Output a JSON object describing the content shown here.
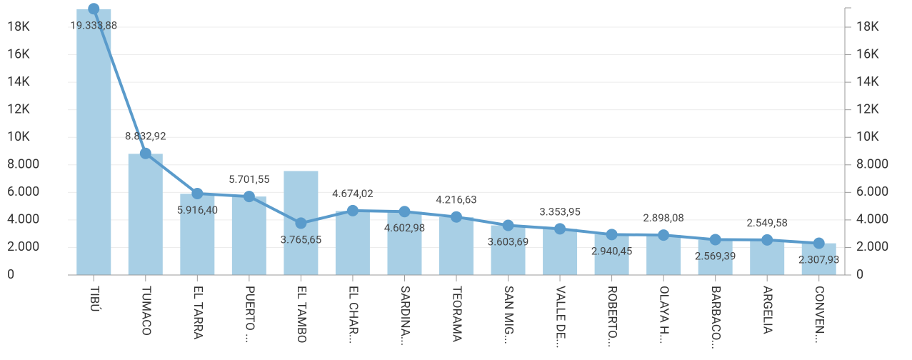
{
  "chart_data": {
    "type": "bar-line",
    "categories": [
      "TIBÚ",
      "TUMACO",
      "EL TARRA",
      "PUERTO ...",
      "EL TAMBO",
      "EL CHAR...",
      "SARDINA...",
      "TEORAMA",
      "SAN MIG...",
      "VALLE DE...",
      "ROBERTO...",
      "OLAYA H...",
      "BARBACO...",
      "ARGELIA",
      "CONVEN..."
    ],
    "series": [
      {
        "type": "bar",
        "color": "#a8cfe5",
        "values": [
          19300,
          8800,
          5900,
          5700,
          7550,
          4650,
          4600,
          4200,
          3600,
          3350,
          2950,
          2900,
          2550,
          2550,
          2300
        ]
      },
      {
        "type": "line",
        "color": "#5a9bcb",
        "axis": "y2",
        "values": [
          19333.88,
          8832.92,
          5916.4,
          5701.55,
          3765.65,
          4674.02,
          4602.98,
          4216.63,
          3603.69,
          3353.95,
          2940.45,
          2898.08,
          2569.39,
          2549.58,
          2307.93
        ],
        "value_labels": [
          "19.333,88",
          "8.832,92",
          "5.916,40",
          "5.701,55",
          "3.765,65",
          "4.674,02",
          "4.602,98",
          "4.216,63",
          "3.603,69",
          "3.353,95",
          "2.940,45",
          "2.898,08",
          "2.569,39",
          "2.549,58",
          "2.307,93"
        ]
      }
    ],
    "ylim": [
      0,
      19400
    ],
    "yticks": [
      0,
      {
        "value": 2000,
        "label": "2.000"
      },
      {
        "value": 4000,
        "label": "4.000"
      },
      {
        "value": 6000,
        "label": "6.000"
      },
      {
        "value": 8000,
        "label": "8.000"
      },
      {
        "value": 10000,
        "label": "10K"
      },
      {
        "value": 12000,
        "label": "12K"
      },
      {
        "value": 14000,
        "label": "14K"
      },
      {
        "value": 16000,
        "label": "16K"
      },
      {
        "value": 18000,
        "label": "18K"
      }
    ],
    "y2lim": [
      0,
      19400
    ],
    "y2ticks": [
      0,
      {
        "value": 2000,
        "label": "2.000"
      },
      {
        "value": 4000,
        "label": "4.000"
      },
      {
        "value": 6000,
        "label": "6.000"
      },
      {
        "value": 8000,
        "label": "8.000"
      },
      {
        "value": 10000,
        "label": "10K"
      },
      {
        "value": 12000,
        "label": "12K"
      },
      {
        "value": 14000,
        "label": "14K"
      },
      {
        "value": 16000,
        "label": "16K"
      },
      {
        "value": 18000,
        "label": "18K"
      }
    ],
    "grid": true
  }
}
